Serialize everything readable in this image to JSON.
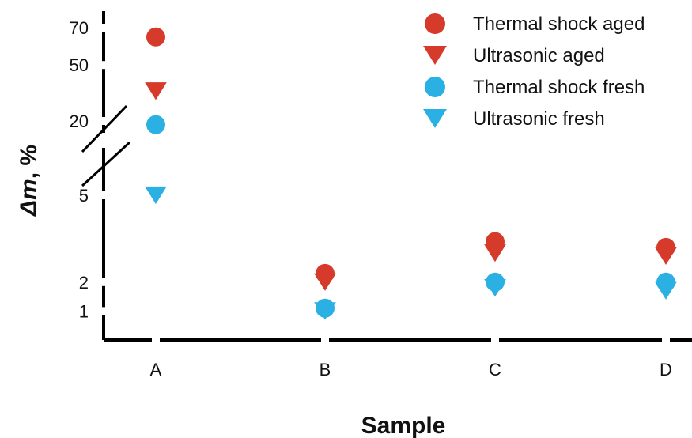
{
  "chart_data": {
    "type": "scatter",
    "xlabel": "Sample",
    "ylabel_symbol": "Δm",
    "ylabel_unit": ", %",
    "y_scale": "broken axis (lower segment 0–5, upper segment 20–70)",
    "y_ticks": [
      "1",
      "2",
      "5",
      "20",
      "50",
      "70"
    ],
    "categories": [
      "A",
      "B",
      "C",
      "D"
    ],
    "series": [
      {
        "name": "Thermal shock aged",
        "marker": "circle",
        "color": "#d63a2a",
        "values": [
          65,
          2.3,
          3.4,
          3.2
        ]
      },
      {
        "name": "Ultrasonic aged",
        "marker": "triangle-down",
        "color": "#d63a2a",
        "values": [
          36,
          2.0,
          3.0,
          2.9
        ]
      },
      {
        "name": "Thermal shock fresh",
        "marker": "circle",
        "color": "#2ab0e3",
        "values": [
          18,
          1.1,
          2.0,
          2.0
        ]
      },
      {
        "name": "Ultrasonic fresh",
        "marker": "triangle-down",
        "color": "#2ab0e3",
        "values": [
          5,
          1.0,
          1.8,
          1.7
        ]
      }
    ],
    "legend_position": "top-right",
    "grid": false
  }
}
